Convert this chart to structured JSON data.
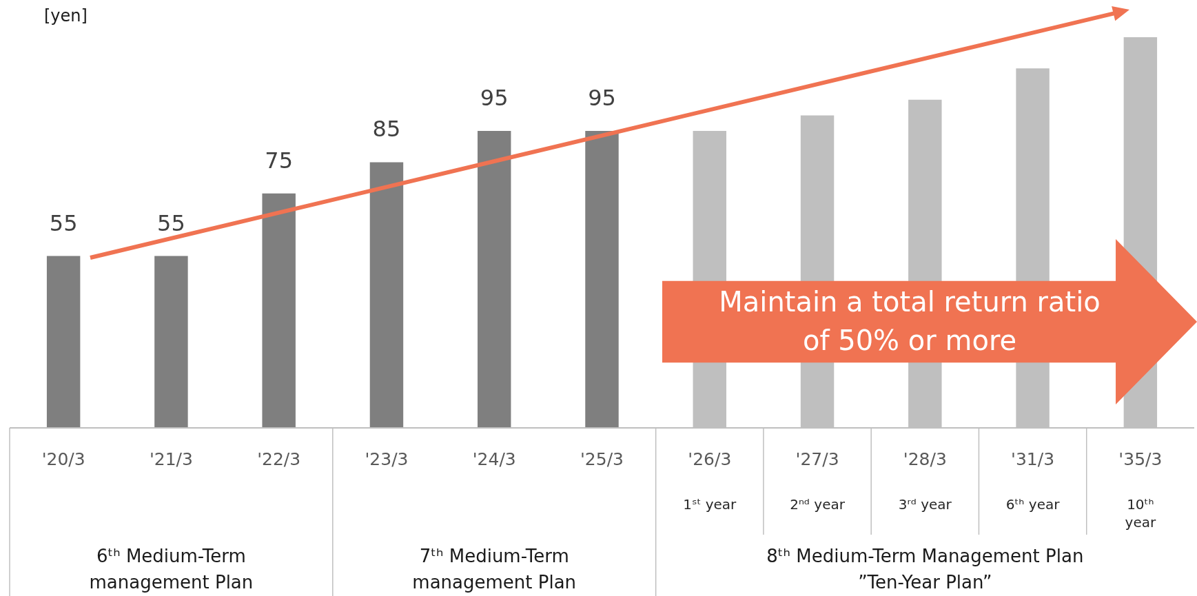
{
  "chart_data": {
    "type": "bar",
    "ylabel": "[yen]",
    "categories": [
      "'20/3",
      "'21/3",
      "'22/3",
      "'23/3",
      "'24/3",
      "'25/3",
      "'26/3\n1ˢᵗ year",
      "'27/3\n2ⁿᵈ year",
      "'28/3\n3ʳᵈ year",
      "'31/3\n6ᵗʰ year",
      "'35/3\n10ᵗʰ\nyear"
    ],
    "values": [
      55,
      55,
      75,
      85,
      95,
      95,
      95,
      100,
      105,
      115,
      125
    ],
    "colors": [
      "#7f7f7f",
      "#7f7f7f",
      "#7f7f7f",
      "#7f7f7f",
      "#7f7f7f",
      "#7f7f7f",
      "#bfbfbf",
      "#bfbfbf",
      "#bfbfbf",
      "#bfbfbf",
      "#bfbfbf"
    ],
    "value_labels": [
      "55",
      "55",
      "75",
      "85",
      "95",
      "95",
      null,
      null,
      null,
      null,
      null
    ],
    "annotations": [
      "6ᵗʰ  Medium-Term\nmanagement Plan",
      "7ᵗʰ   Medium-Term\nmanagement Plan",
      "8ᵗʰ Medium-Term Management Plan\n”Ten-Year Plan”",
      "Maintain a total return ratio\nof 50% or more"
    ]
  }
}
